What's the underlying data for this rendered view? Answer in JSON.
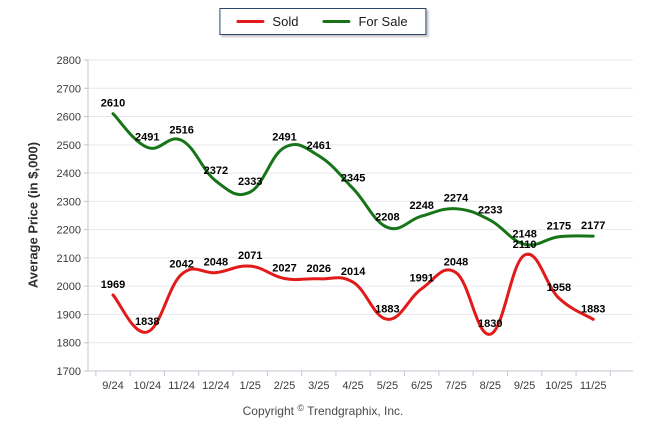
{
  "footer": {
    "copyright_prefix": "Copyright",
    "copyright_symbol": "©",
    "copyright_company": "Trendgraphix, Inc."
  },
  "colors": {
    "sold_line": "#e21a1a",
    "for_sale_line": "#177517",
    "grid": "#e7e7ef",
    "axis": "#c5c5d3",
    "legend_border": "#2c466b"
  },
  "chart_data": {
    "type": "line",
    "title": "",
    "xlabel": "",
    "ylabel": "Average Price (in $,000)",
    "categories": [
      "9/24",
      "10/24",
      "11/24",
      "12/24",
      "1/25",
      "2/25",
      "3/25",
      "4/25",
      "5/25",
      "6/25",
      "7/25",
      "8/25",
      "9/25",
      "10/25",
      "11/25"
    ],
    "series": [
      {
        "name": "Sold",
        "color": "#e21a1a",
        "values": [
          1969,
          1838,
          2042,
          2048,
          2071,
          2027,
          2026,
          2014,
          1883,
          1991,
          2048,
          1830,
          2110,
          1958,
          1883
        ]
      },
      {
        "name": "For Sale",
        "color": "#177517",
        "values": [
          2610,
          2491,
          2516,
          2372,
          2333,
          2491,
          2461,
          2345,
          2208,
          2248,
          2274,
          2233,
          2148,
          2175,
          2177
        ]
      }
    ],
    "ylim": [
      1700,
      2800
    ],
    "ytick_interval": 100,
    "grid": "horizontal",
    "legend_position": "top-center",
    "data_labels": true,
    "line_style": "smooth"
  }
}
